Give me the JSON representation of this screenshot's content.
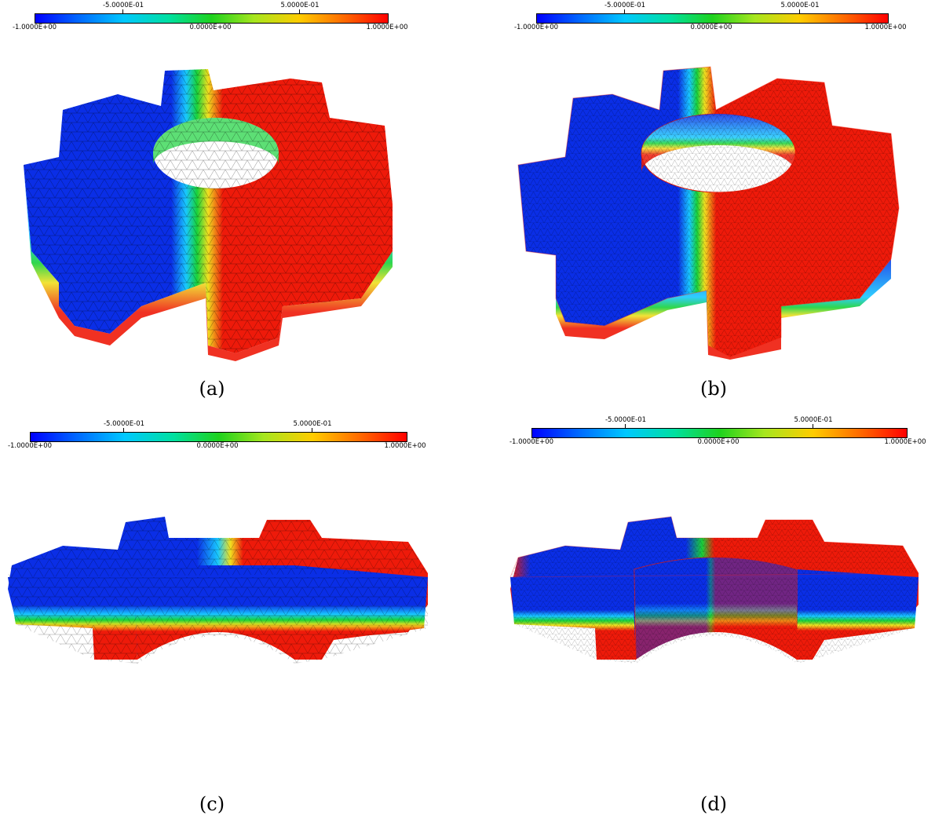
{
  "colorbar": {
    "min_label": "-1.0000E+00",
    "mid_label": "0.0000E+00",
    "max_label": "1.0000E+00",
    "low_quarter_label": "-5.0000E-01",
    "high_quarter_label": "5.0000E-01",
    "colormap": [
      "#0000ff",
      "#00c8ff",
      "#1ed21e",
      "#ffcc00",
      "#ff0000"
    ]
  },
  "panels": [
    {
      "caption": "(a)",
      "view": "top-oblique",
      "mesh": "coarse"
    },
    {
      "caption": "(b)",
      "view": "top-oblique",
      "mesh": "refined"
    },
    {
      "caption": "(c)",
      "view": "side",
      "mesh": "coarse"
    },
    {
      "caption": "(d)",
      "view": "side",
      "mesh": "refined"
    }
  ],
  "colors": {
    "blue": "#0a2ee6",
    "red": "#ee1a0a",
    "green": "#18d23a",
    "cyan": "#18c8ff",
    "yellow": "#f0e020",
    "mesh_line": "#000000"
  }
}
